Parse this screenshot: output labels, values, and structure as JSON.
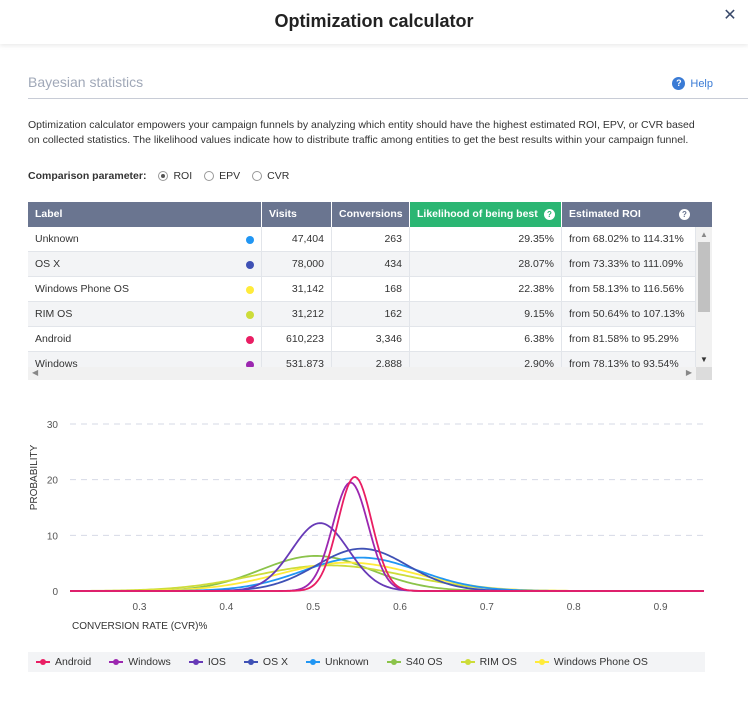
{
  "modal": {
    "title": "Optimization calculator",
    "close_label": "✕"
  },
  "section": {
    "title": "Bayesian statistics",
    "help_label": "Help",
    "description": "Optimization calculator empowers your campaign funnels by analyzing which entity should have the highest estimated ROI, EPV, or CVR based on collected statistics. The likelihood values indicate how to distribute traffic among entities to get the best results within your campaign funnel."
  },
  "comparison": {
    "label": "Comparison parameter:",
    "options": [
      {
        "label": "ROI",
        "checked": true
      },
      {
        "label": "EPV",
        "checked": false
      },
      {
        "label": "CVR",
        "checked": false
      }
    ]
  },
  "table": {
    "headers": [
      "Label",
      "Visits",
      "Conversions",
      "Likelihood of being best",
      "Estimated ROI"
    ],
    "rows": [
      {
        "label": "Unknown",
        "color": "#2196f3",
        "visits": "47,404",
        "conversions": "263",
        "likelihood": "29.35%",
        "roi": "from 68.02% to 114.31%"
      },
      {
        "label": "OS X",
        "color": "#3f51b5",
        "visits": "78,000",
        "conversions": "434",
        "likelihood": "28.07%",
        "roi": "from 73.33% to 111.09%"
      },
      {
        "label": "Windows Phone OS",
        "color": "#ffeb3b",
        "visits": "31,142",
        "conversions": "168",
        "likelihood": "22.38%",
        "roi": "from 58.13% to 116.56%"
      },
      {
        "label": "RIM OS",
        "color": "#cddc39",
        "visits": "31,212",
        "conversions": "162",
        "likelihood": "9.15%",
        "roi": "from 50.64% to 107.13%"
      },
      {
        "label": "Android",
        "color": "#e91e63",
        "visits": "610,223",
        "conversions": "3,346",
        "likelihood": "6.38%",
        "roi": "from 81.58% to 95.29%"
      },
      {
        "label": "Windows",
        "color": "#9c27b0",
        "visits": "531,873",
        "conversions": "2,888",
        "likelihood": "2.90%",
        "roi": "from 78.13% to 93.54%"
      }
    ]
  },
  "chart_data": {
    "type": "line",
    "xlabel": "CONVERSION RATE (CVR)%",
    "ylabel": "PROBABILITY",
    "xlim": [
      0.22,
      0.95
    ],
    "ylim": [
      0,
      30
    ],
    "xticks": [
      0.3,
      0.4,
      0.5,
      0.6,
      0.7,
      0.8,
      0.9
    ],
    "yticks": [
      0,
      10,
      20,
      30
    ],
    "grid": "horizontal dashed",
    "legend": "bottom",
    "series": [
      {
        "name": "Android",
        "color": "#e91e63",
        "mean": 0.548,
        "peak": 20.5
      },
      {
        "name": "Windows",
        "color": "#9c27b0",
        "mean": 0.543,
        "peak": 19.5
      },
      {
        "name": "IOS",
        "color": "#673ab7",
        "mean": 0.508,
        "peak": 12.2
      },
      {
        "name": "OS X",
        "color": "#3f51b5",
        "mean": 0.556,
        "peak": 7.6
      },
      {
        "name": "Unknown",
        "color": "#2196f3",
        "mean": 0.555,
        "peak": 6.0
      },
      {
        "name": "S40 OS",
        "color": "#8bc34a",
        "mean": 0.503,
        "peak": 6.3
      },
      {
        "name": "RIM OS",
        "color": "#cddc39",
        "mean": 0.519,
        "peak": 4.6
      },
      {
        "name": "Windows Phone OS",
        "color": "#ffeb3b",
        "mean": 0.54,
        "peak": 5.1
      }
    ]
  }
}
